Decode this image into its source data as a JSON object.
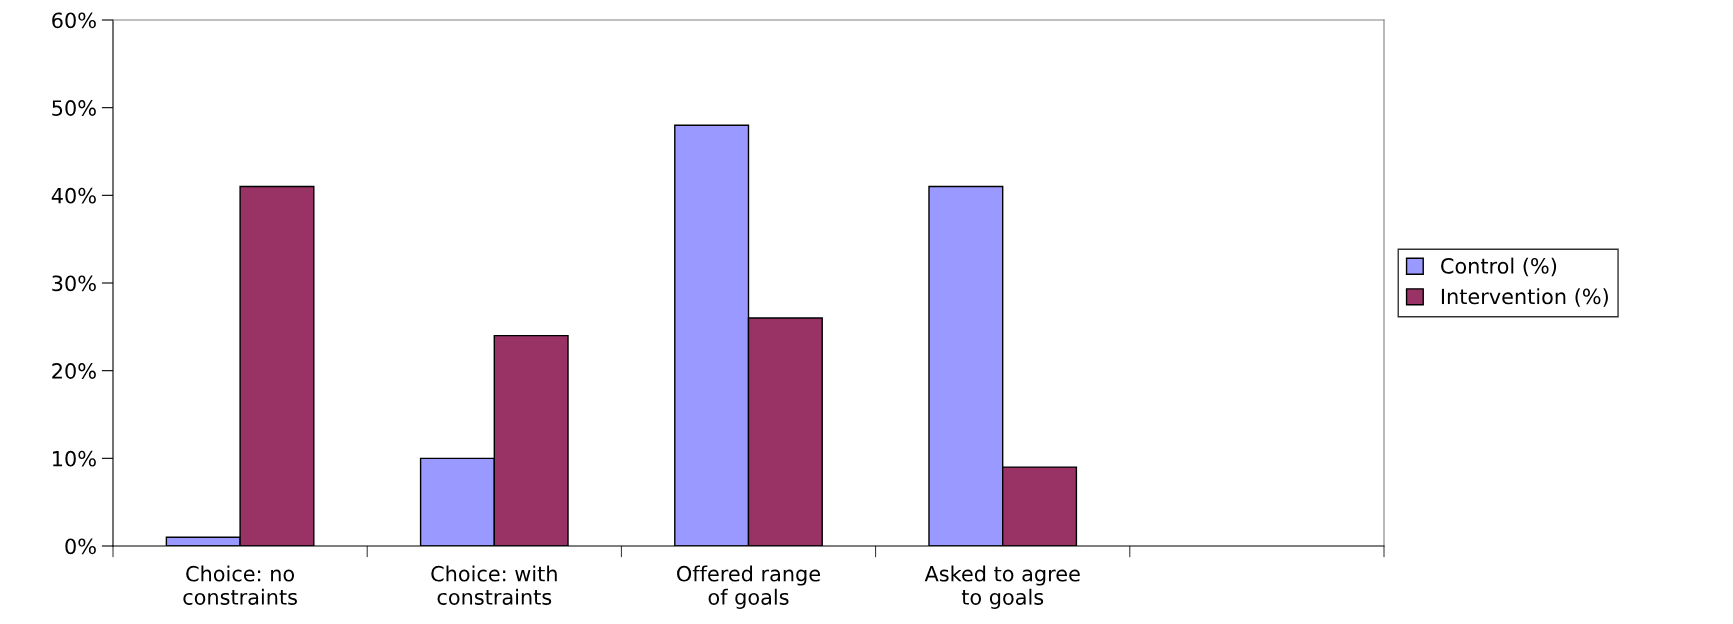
{
  "chart_data": {
    "type": "bar",
    "categories": [
      "Choice: no\nconstraints",
      "Choice: with\nconstraints",
      "Offered range\nof goals",
      "Asked to agree\nto goals",
      null
    ],
    "series": [
      {
        "name": "Control (%)",
        "color": "#9999ff",
        "values": [
          1,
          10,
          48,
          41,
          null
        ]
      },
      {
        "name": "Intervention (%)",
        "color": "#993366",
        "values": [
          41,
          24,
          26,
          9,
          null
        ]
      }
    ],
    "ylim": [
      0,
      60
    ],
    "yticks": [
      {
        "value": 0,
        "label": "0%"
      },
      {
        "value": 10,
        "label": "10%"
      },
      {
        "value": 20,
        "label": "20%"
      },
      {
        "value": 30,
        "label": "30%"
      },
      {
        "value": 40,
        "label": "40%"
      },
      {
        "value": 50,
        "label": "50%"
      },
      {
        "value": 60,
        "label": "60%"
      }
    ],
    "grid": false,
    "legend": "right"
  }
}
